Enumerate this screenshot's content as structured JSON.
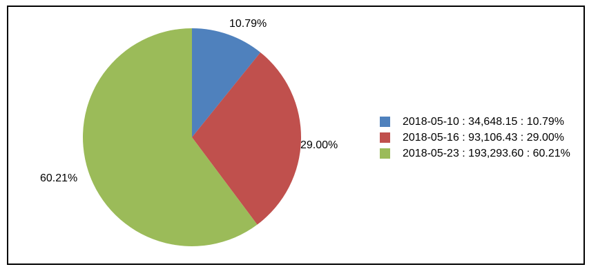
{
  "chart_data": {
    "type": "pie",
    "title": "",
    "start_angle_deg": 0,
    "direction": "clockwise",
    "legend_position": "right",
    "slices": [
      {
        "date": "2018-05-10",
        "value": 34648.15,
        "value_label": "34,648.15",
        "percent": 10.79,
        "percent_label": "10.79%",
        "color": "#4f81bd"
      },
      {
        "date": "2018-05-16",
        "value": 93106.43,
        "value_label": "93,106.43",
        "percent": 29.0,
        "percent_label": "29.00%",
        "color": "#c0504d"
      },
      {
        "date": "2018-05-23",
        "value": 193293.6,
        "value_label": "193,293.60",
        "percent": 60.21,
        "percent_label": "60.21%",
        "color": "#9bbb59"
      }
    ],
    "legend_entries": [
      "2018-05-10 : 34,648.15 : 10.79%",
      "2018-05-16 : 93,106.43 : 29.00%",
      "2018-05-23 : 193,293.60 : 60.21%"
    ]
  },
  "colors": {
    "frame_border": "#000000",
    "background": "#ffffff",
    "text": "#000000"
  }
}
